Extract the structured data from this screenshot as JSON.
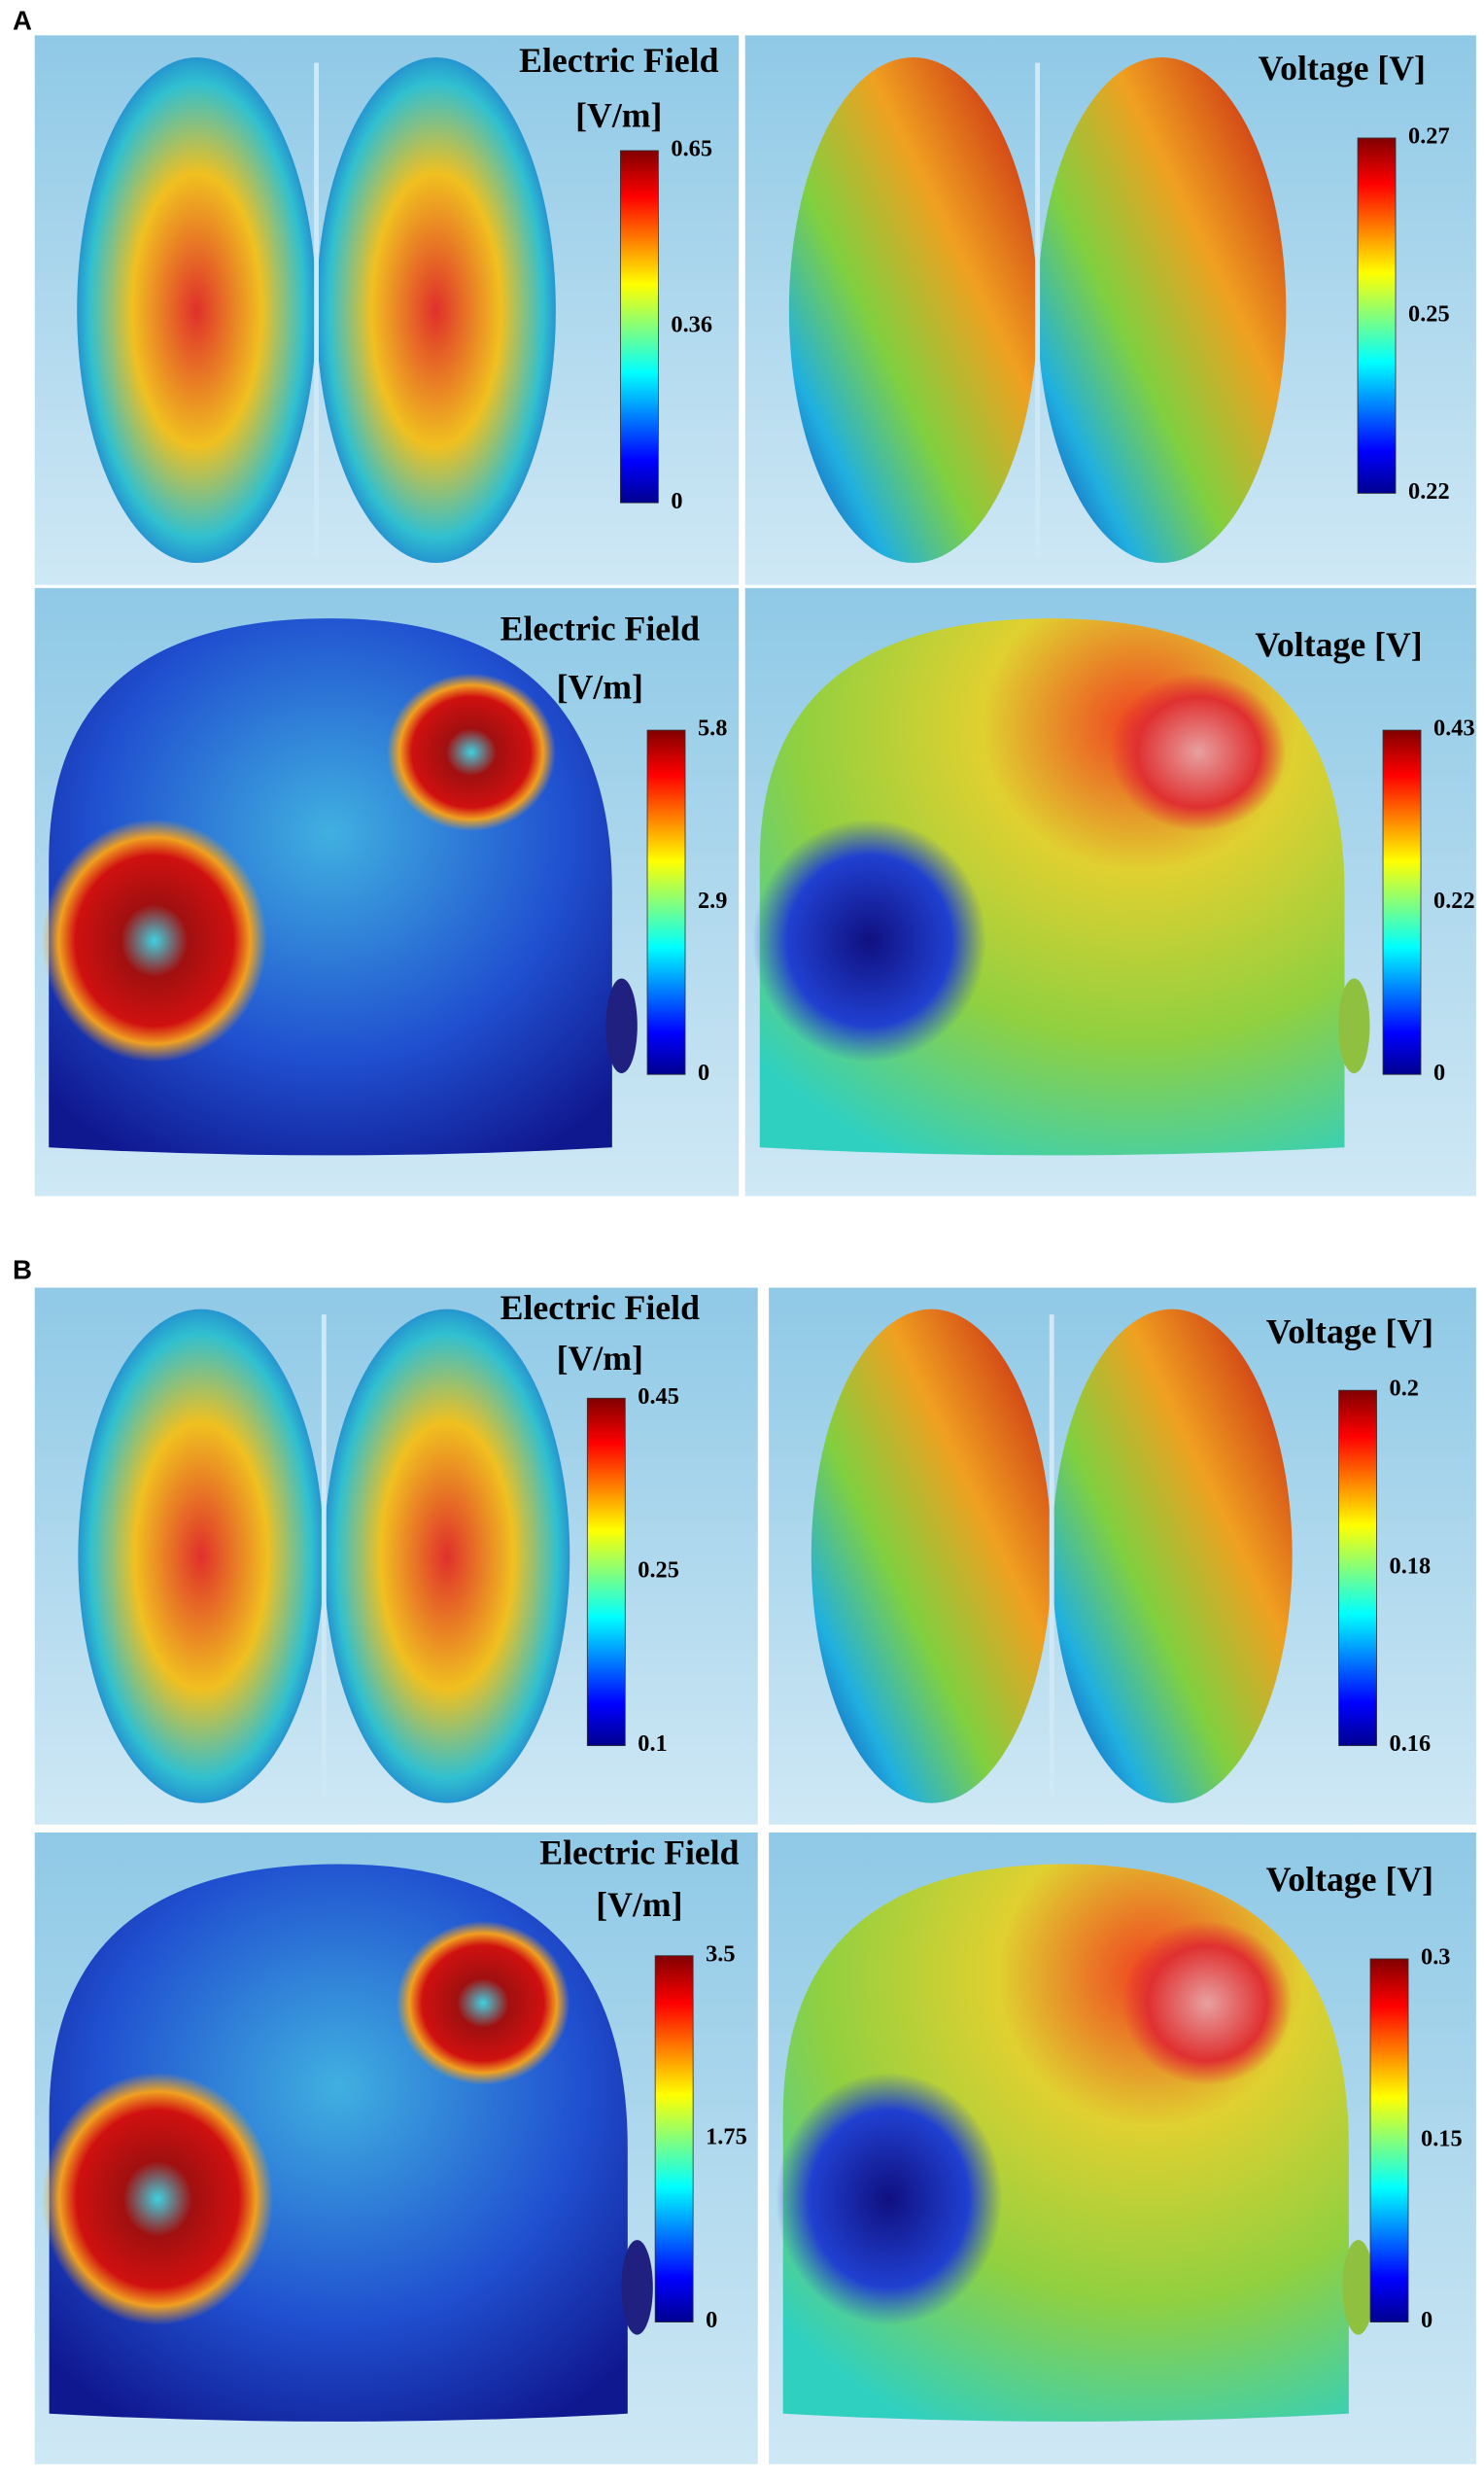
{
  "sections": [
    {
      "label": "A",
      "panels": [
        {
          "title": "Electric Field",
          "unit": "[V/m]",
          "ticks": [
            0.65,
            0.36,
            0
          ]
        },
        {
          "title": "Voltage [V]",
          "ticks": [
            0.27,
            0.25,
            0.22
          ]
        },
        {
          "title": "Electric Field",
          "unit": "[V/m]",
          "ticks": [
            5.8,
            2.9,
            0
          ]
        },
        {
          "title": "Voltage [V]",
          "ticks": [
            0.43,
            0.22,
            0
          ]
        }
      ]
    },
    {
      "label": "B",
      "panels": [
        {
          "title": "Electric Field",
          "unit": "[V/m]",
          "ticks": [
            0.45,
            0.25,
            0.1
          ]
        },
        {
          "title": "Voltage [V]",
          "ticks": [
            0.2,
            0.18,
            0.16
          ]
        },
        {
          "title": "Electric Field",
          "unit": "[V/m]",
          "ticks": [
            3.5,
            1.75,
            0
          ]
        },
        {
          "title": "Voltage [V]",
          "ticks": [
            0.3,
            0.15,
            0
          ]
        }
      ]
    }
  ]
}
